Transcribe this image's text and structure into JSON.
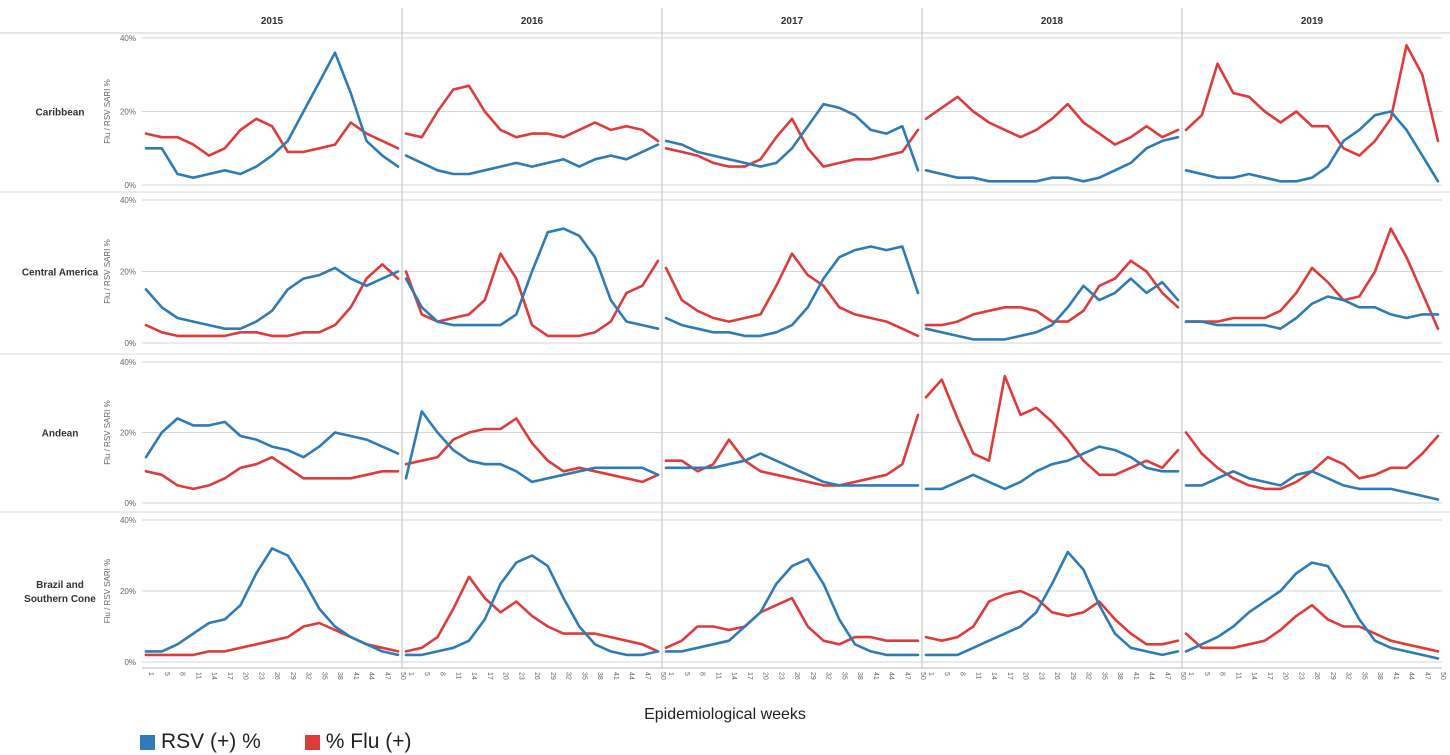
{
  "chart_data": {
    "type": "line",
    "xlabel": "Epidemiological weeks",
    "ylabel": "Flu / RSV SARI %",
    "years": [
      "2015",
      "2016",
      "2017",
      "2018",
      "2019"
    ],
    "regions": [
      "Caribbean",
      "Central America",
      "Andean",
      "Brazil and Southern Cone"
    ],
    "week_ticks": [
      "1",
      "5",
      "8",
      "11",
      "14",
      "17",
      "20",
      "23",
      "26",
      "29",
      "32",
      "35",
      "38",
      "41",
      "44",
      "47",
      "50"
    ],
    "ylim": [
      0,
      40
    ],
    "yticks": [
      "0%",
      "20%",
      "40%"
    ],
    "series_names": [
      "RSV (+) %",
      "% Flu (+)"
    ],
    "colors": {
      "rsv": "#2e7bb6",
      "flu": "#de3b3b",
      "grid": "#d6d6d6",
      "divider": "#bdbdbd"
    },
    "panels": {
      "Caribbean": {
        "2015": {
          "rsv": [
            10,
            10,
            3,
            2,
            3,
            4,
            3,
            5,
            8,
            12,
            20,
            28,
            36,
            25,
            12,
            8,
            5
          ],
          "flu": [
            14,
            13,
            13,
            11,
            8,
            10,
            15,
            18,
            16,
            9,
            9,
            10,
            11,
            17,
            14,
            12,
            10
          ]
        },
        "2016": {
          "rsv": [
            8,
            6,
            4,
            3,
            3,
            4,
            5,
            6,
            5,
            6,
            7,
            5,
            7,
            8,
            7,
            9,
            11
          ],
          "flu": [
            14,
            13,
            20,
            26,
            27,
            20,
            15,
            13,
            14,
            14,
            13,
            15,
            17,
            15,
            16,
            15,
            12
          ]
        },
        "2017": {
          "rsv": [
            12,
            11,
            9,
            8,
            7,
            6,
            5,
            6,
            10,
            16,
            22,
            21,
            19,
            15,
            14,
            16,
            4
          ],
          "flu": [
            10,
            9,
            8,
            6,
            5,
            5,
            7,
            13,
            18,
            10,
            5,
            6,
            7,
            7,
            8,
            9,
            15
          ]
        },
        "2018": {
          "rsv": [
            4,
            3,
            2,
            2,
            1,
            1,
            1,
            1,
            2,
            2,
            1,
            2,
            4,
            6,
            10,
            12,
            13
          ],
          "flu": [
            18,
            21,
            24,
            20,
            17,
            15,
            13,
            15,
            18,
            22,
            17,
            14,
            11,
            13,
            16,
            13,
            15
          ]
        },
        "2019": {
          "rsv": [
            4,
            3,
            2,
            2,
            3,
            2,
            1,
            1,
            2,
            5,
            12,
            15,
            19,
            20,
            15,
            8,
            1
          ],
          "flu": [
            15,
            19,
            33,
            25,
            24,
            20,
            17,
            20,
            16,
            16,
            10,
            8,
            12,
            18,
            38,
            30,
            12
          ]
        }
      },
      "Central America": {
        "2015": {
          "rsv": [
            15,
            10,
            7,
            6,
            5,
            4,
            4,
            6,
            9,
            15,
            18,
            19,
            21,
            18,
            16,
            18,
            20
          ],
          "flu": [
            5,
            3,
            2,
            2,
            2,
            2,
            3,
            3,
            2,
            2,
            3,
            3,
            5,
            10,
            18,
            22,
            18
          ]
        },
        "2016": {
          "rsv": [
            18,
            10,
            6,
            5,
            5,
            5,
            5,
            8,
            20,
            31,
            32,
            30,
            24,
            12,
            6,
            5,
            4
          ],
          "flu": [
            20,
            8,
            6,
            7,
            8,
            12,
            25,
            18,
            5,
            2,
            2,
            2,
            3,
            6,
            14,
            16,
            23
          ]
        },
        "2017": {
          "rsv": [
            7,
            5,
            4,
            3,
            3,
            2,
            2,
            3,
            5,
            10,
            18,
            24,
            26,
            27,
            26,
            27,
            14
          ],
          "flu": [
            21,
            12,
            9,
            7,
            6,
            7,
            8,
            16,
            25,
            19,
            16,
            10,
            8,
            7,
            6,
            4,
            2
          ]
        },
        "2018": {
          "rsv": [
            4,
            3,
            2,
            1,
            1,
            1,
            2,
            3,
            5,
            10,
            16,
            12,
            14,
            18,
            14,
            17,
            12
          ],
          "flu": [
            5,
            5,
            6,
            8,
            9,
            10,
            10,
            9,
            6,
            6,
            9,
            16,
            18,
            23,
            20,
            14,
            10
          ]
        },
        "2019": {
          "rsv": [
            6,
            6,
            5,
            5,
            5,
            5,
            4,
            7,
            11,
            13,
            12,
            10,
            10,
            8,
            7,
            8,
            8
          ],
          "flu": [
            6,
            6,
            6,
            7,
            7,
            7,
            9,
            14,
            21,
            17,
            12,
            13,
            20,
            32,
            24,
            14,
            4
          ]
        }
      },
      "Andean": {
        "2015": {
          "rsv": [
            13,
            20,
            24,
            22,
            22,
            23,
            19,
            18,
            16,
            15,
            13,
            16,
            20,
            19,
            18,
            16,
            14
          ],
          "flu": [
            9,
            8,
            5,
            4,
            5,
            7,
            10,
            11,
            13,
            10,
            7,
            7,
            7,
            7,
            8,
            9,
            9
          ]
        },
        "2016": {
          "rsv": [
            7,
            26,
            20,
            15,
            12,
            11,
            11,
            9,
            6,
            7,
            8,
            9,
            10,
            10,
            10,
            10,
            8
          ],
          "flu": [
            11,
            12,
            13,
            18,
            20,
            21,
            21,
            24,
            17,
            12,
            9,
            10,
            9,
            8,
            7,
            6,
            8
          ]
        },
        "2017": {
          "rsv": [
            10,
            10,
            10,
            10,
            11,
            12,
            14,
            12,
            10,
            8,
            6,
            5,
            5,
            5,
            5,
            5,
            5
          ],
          "flu": [
            12,
            12,
            9,
            11,
            18,
            12,
            9,
            8,
            7,
            6,
            5,
            5,
            6,
            7,
            8,
            11,
            25
          ]
        },
        "2018": {
          "rsv": [
            4,
            4,
            6,
            8,
            6,
            4,
            6,
            9,
            11,
            12,
            14,
            16,
            15,
            13,
            10,
            9,
            9
          ],
          "flu": [
            30,
            35,
            24,
            14,
            12,
            36,
            25,
            27,
            23,
            18,
            12,
            8,
            8,
            10,
            12,
            10,
            15
          ]
        },
        "2019": {
          "rsv": [
            5,
            5,
            7,
            9,
            7,
            6,
            5,
            8,
            9,
            7,
            5,
            4,
            4,
            4,
            3,
            2,
            1
          ],
          "flu": [
            20,
            14,
            10,
            7,
            5,
            4,
            4,
            6,
            9,
            13,
            11,
            7,
            8,
            10,
            10,
            14,
            19
          ]
        }
      },
      "Brazil and Southern Cone": {
        "2015": {
          "rsv": [
            3,
            3,
            5,
            8,
            11,
            12,
            16,
            25,
            32,
            30,
            23,
            15,
            10,
            7,
            5,
            3,
            2
          ],
          "flu": [
            2,
            2,
            2,
            2,
            3,
            3,
            4,
            5,
            6,
            7,
            10,
            11,
            9,
            7,
            5,
            4,
            3
          ]
        },
        "2016": {
          "rsv": [
            2,
            2,
            3,
            4,
            6,
            12,
            22,
            28,
            30,
            27,
            18,
            10,
            5,
            3,
            2,
            2,
            3
          ],
          "flu": [
            3,
            4,
            7,
            15,
            24,
            18,
            14,
            17,
            13,
            10,
            8,
            8,
            8,
            7,
            6,
            5,
            3
          ]
        },
        "2017": {
          "rsv": [
            3,
            3,
            4,
            5,
            6,
            10,
            14,
            22,
            27,
            29,
            22,
            12,
            5,
            3,
            2,
            2,
            2
          ],
          "flu": [
            4,
            6,
            10,
            10,
            9,
            10,
            14,
            16,
            18,
            10,
            6,
            5,
            7,
            7,
            6,
            6,
            6
          ]
        },
        "2018": {
          "rsv": [
            2,
            2,
            2,
            4,
            6,
            8,
            10,
            14,
            22,
            31,
            26,
            16,
            8,
            4,
            3,
            2,
            3
          ],
          "flu": [
            7,
            6,
            7,
            10,
            17,
            19,
            20,
            18,
            14,
            13,
            14,
            17,
            12,
            8,
            5,
            5,
            6
          ]
        },
        "2019": {
          "rsv": [
            3,
            5,
            7,
            10,
            14,
            17,
            20,
            25,
            28,
            27,
            20,
            12,
            6,
            4,
            3,
            2,
            1
          ],
          "flu": [
            8,
            4,
            4,
            4,
            5,
            6,
            9,
            13,
            16,
            12,
            10,
            10,
            8,
            6,
            5,
            4,
            3
          ]
        }
      }
    }
  }
}
